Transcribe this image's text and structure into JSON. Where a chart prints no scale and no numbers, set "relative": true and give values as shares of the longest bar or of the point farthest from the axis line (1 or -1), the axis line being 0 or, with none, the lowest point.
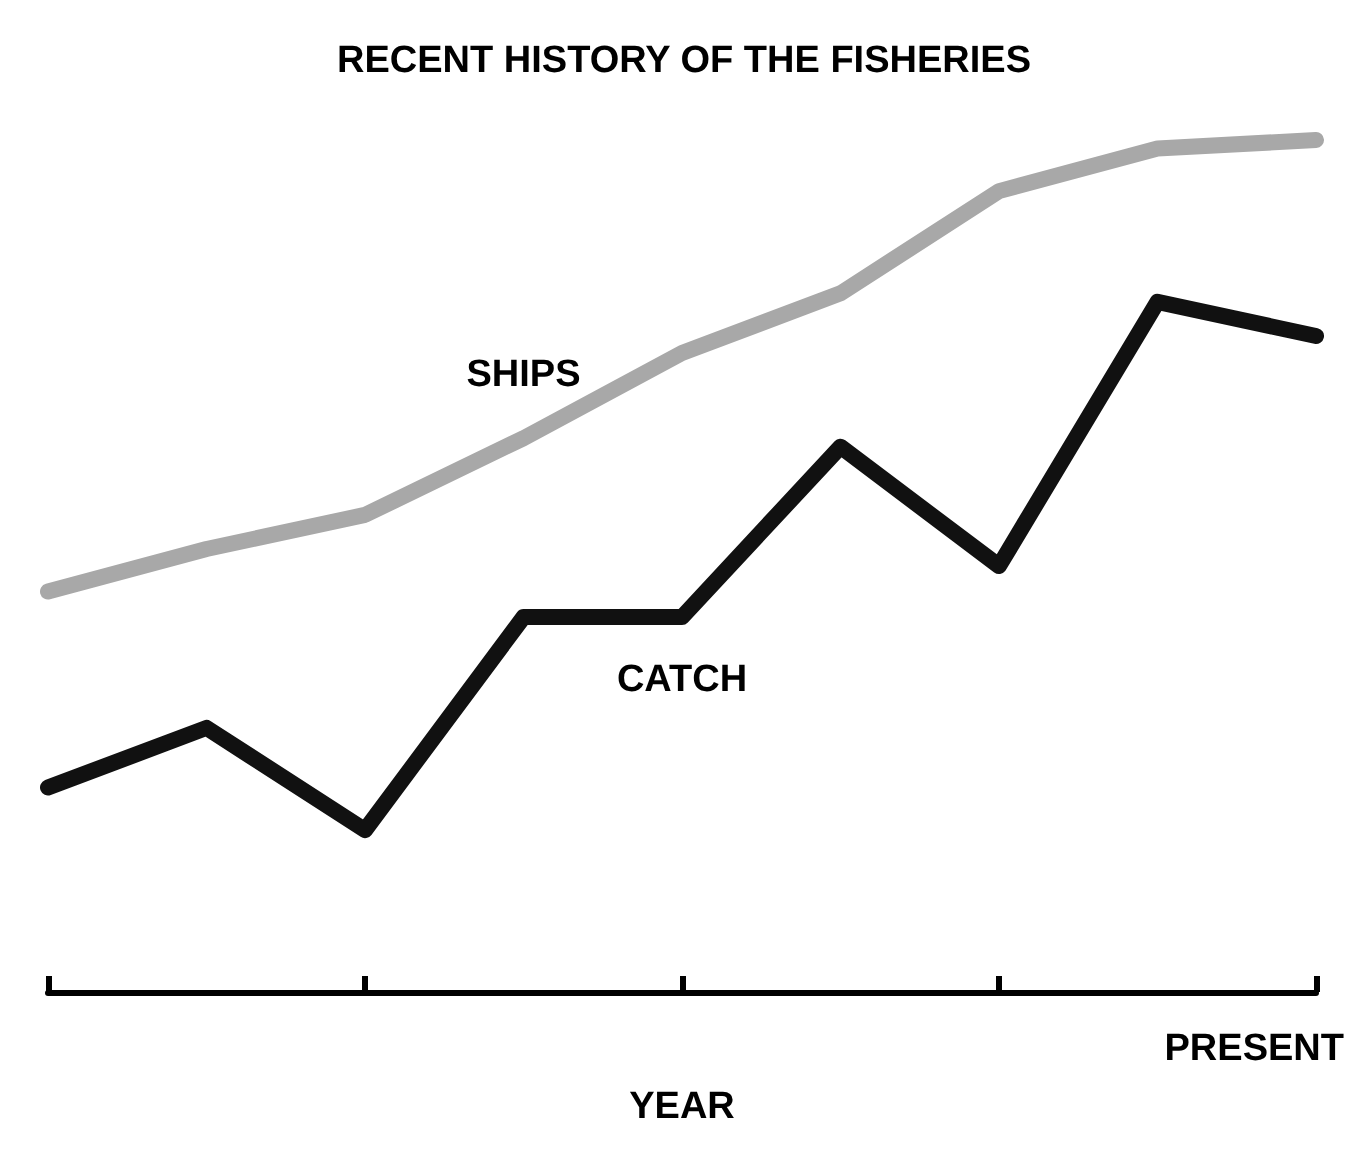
{
  "chart_data": {
    "type": "line",
    "title": "RECENT HISTORY OF THE FISHERIES",
    "xlabel": "YEAR",
    "relative": true,
    "grid": false,
    "legend": false,
    "marker": "none",
    "line_style": "solid",
    "annotations": [
      "PRESENT"
    ],
    "categories": [
      null,
      null,
      null,
      null,
      null,
      null,
      null,
      null,
      null
    ],
    "series": [
      {
        "name": "SHIPS",
        "color": "#a8a8a8",
        "values": [
          0.47,
          0.52,
          0.56,
          0.65,
          0.75,
          0.82,
          0.94,
          0.99,
          1
        ]
      },
      {
        "name": "CATCH",
        "color": "#111111",
        "values": [
          0.24,
          0.31,
          0.19,
          0.44,
          0.44,
          0.64,
          0.5,
          0.81,
          0.77
        ]
      }
    ]
  }
}
